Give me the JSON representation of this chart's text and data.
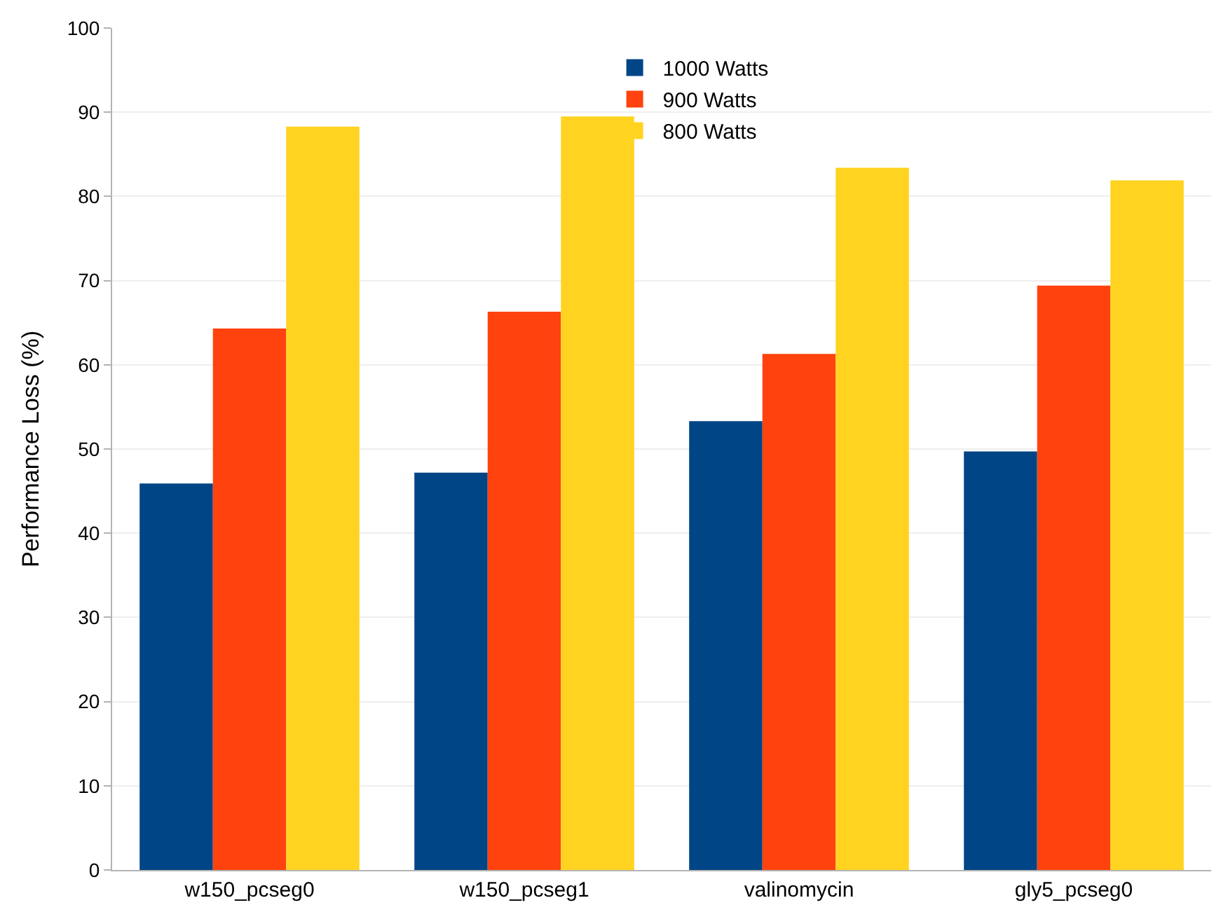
{
  "chart_data": {
    "type": "bar",
    "ylabel": "Performance Loss (%)",
    "categories": [
      "w150_pcseg0",
      "w150_pcseg1",
      "valinomycin",
      "gly5_pcseg0"
    ],
    "series": [
      {
        "name": "1000 Watts",
        "color": "#004586",
        "values": [
          45.9,
          47.2,
          53.3,
          49.7
        ]
      },
      {
        "name": "900 Watts",
        "color": "#ff420e",
        "values": [
          64.3,
          66.3,
          61.3,
          69.4
        ]
      },
      {
        "name": "800 Watts",
        "color": "#ffd320",
        "values": [
          88.3,
          89.5,
          83.4,
          81.9
        ]
      }
    ],
    "ylim": [
      0,
      100
    ],
    "yticks": [
      0,
      10,
      20,
      30,
      40,
      50,
      60,
      70,
      80,
      90,
      100
    ],
    "grid": "y",
    "legend": "top"
  }
}
